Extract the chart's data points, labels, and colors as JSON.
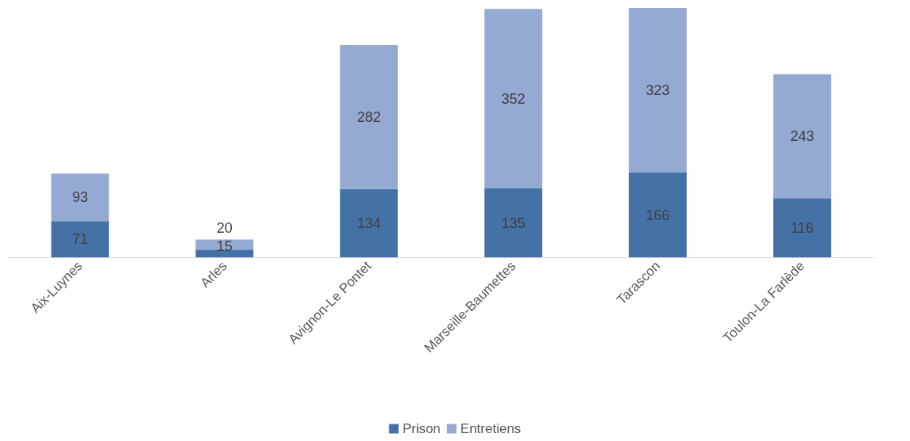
{
  "chart_data": {
    "type": "bar",
    "stacked": true,
    "data_labels": true,
    "legend": "bottom",
    "categories": [
      "Aix-Luynes",
      "Arles",
      "Avignon-Le Pontet",
      "Marseille-Baumettes",
      "Tarascon",
      "Toulon-La Farlède"
    ],
    "series": [
      {
        "name": "Prison",
        "color": "#4472a6",
        "values": [
          71,
          15,
          134,
          135,
          166,
          116
        ]
      },
      {
        "name": "Entretiens",
        "color": "#94aad3",
        "values": [
          93,
          20,
          282,
          352,
          323,
          243
        ]
      }
    ]
  }
}
